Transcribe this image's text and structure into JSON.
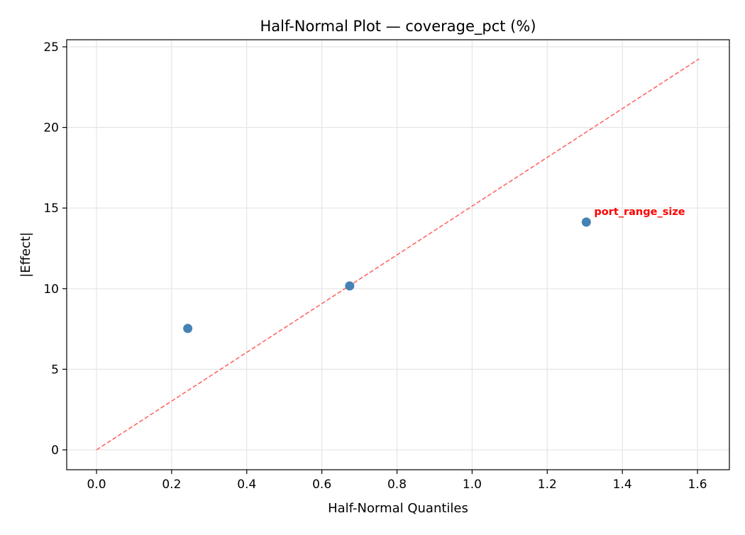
{
  "chart_data": {
    "type": "scatter",
    "title": "Half-Normal Plot — coverage_pct (%)",
    "xlabel": "Half-Normal Quantiles",
    "ylabel": "|Effect|",
    "xlim": [
      -0.08,
      1.68
    ],
    "ylim": [
      -1.25,
      25.4
    ],
    "xticks": [
      0.0,
      0.2,
      0.4,
      0.6,
      0.8,
      1.0,
      1.2,
      1.4,
      1.6
    ],
    "xtick_labels": [
      "0.0",
      "0.2",
      "0.4",
      "0.6",
      "0.8",
      "1.0",
      "1.2",
      "1.4",
      "1.6"
    ],
    "yticks": [
      0,
      5,
      10,
      15,
      20,
      25
    ],
    "ytick_labels": [
      "0",
      "5",
      "10",
      "15",
      "20",
      "25"
    ],
    "grid": true,
    "points": [
      {
        "x": 0.243,
        "y": 7.53
      },
      {
        "x": 0.674,
        "y": 10.17
      },
      {
        "x": 1.304,
        "y": 14.13,
        "label": "port_range_size"
      }
    ],
    "reference_line": {
      "x": [
        0,
        1.604
      ],
      "y": [
        0,
        24.25
      ],
      "style": "dashed",
      "color": "#ff6666"
    },
    "colors": {
      "points": "#4682b4",
      "label": "#ff0000",
      "line": "#ff6666",
      "grid": "#e5e5e5"
    }
  }
}
